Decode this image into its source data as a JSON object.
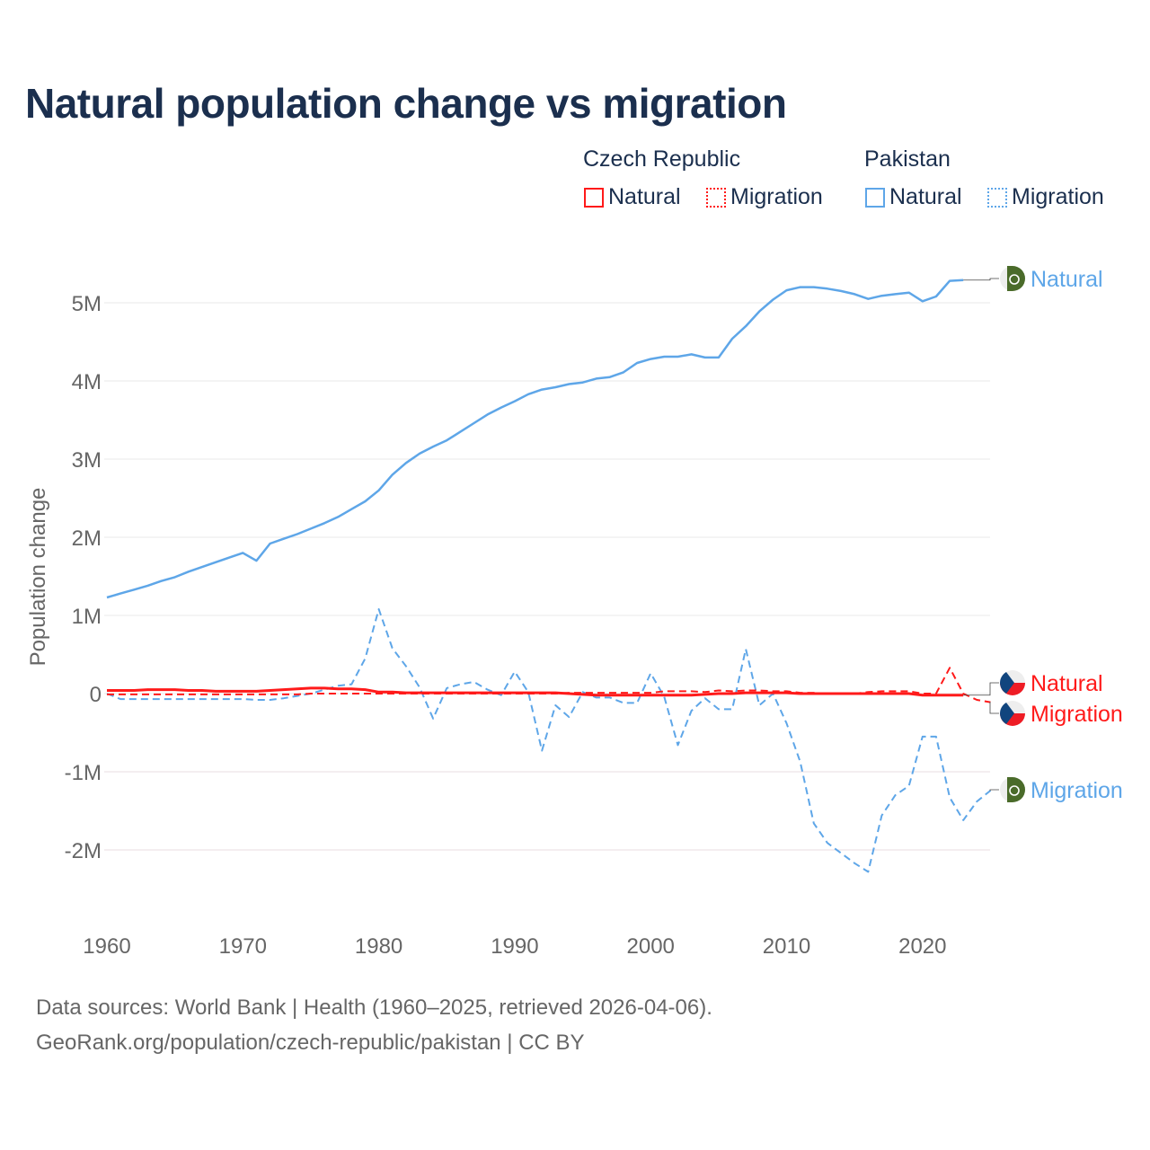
{
  "chart_data": {
    "type": "line",
    "title": "Natural population change vs migration",
    "xlabel": "",
    "ylabel": "Population change",
    "xlim": [
      1960,
      2025
    ],
    "ylim": [
      -2.6,
      5.6
    ],
    "x_ticks": [
      "1960",
      "1970",
      "1980",
      "1990",
      "2000",
      "2010",
      "2020"
    ],
    "y_ticks": [
      {
        "v": 5,
        "label": "5M"
      },
      {
        "v": 4,
        "label": "4M"
      },
      {
        "v": 3,
        "label": "3M"
      },
      {
        "v": 2,
        "label": "2M"
      },
      {
        "v": 1,
        "label": "1M"
      },
      {
        "v": 0,
        "label": "0"
      },
      {
        "v": -1,
        "label": "-1M"
      },
      {
        "v": -2,
        "label": "-2M"
      }
    ],
    "units": "millions",
    "legend": {
      "groups": [
        {
          "name": "Czech Republic",
          "items": [
            "Natural",
            "Migration"
          ]
        },
        {
          "name": "Pakistan",
          "items": [
            "Natural",
            "Migration"
          ]
        }
      ],
      "placement": "top-right"
    },
    "series": [
      {
        "name": "Pakistan Natural",
        "country": "Pakistan",
        "kind": "Natural",
        "color": "#5ea6e8",
        "dash": false,
        "start": 1960,
        "values": [
          1.23,
          1.28,
          1.33,
          1.38,
          1.44,
          1.49,
          1.56,
          1.62,
          1.68,
          1.74,
          1.8,
          1.7,
          1.92,
          1.98,
          2.04,
          2.11,
          2.18,
          2.26,
          2.36,
          2.46,
          2.6,
          2.8,
          2.95,
          3.07,
          3.16,
          3.24,
          3.35,
          3.46,
          3.57,
          3.66,
          3.74,
          3.83,
          3.89,
          3.92,
          3.96,
          3.98,
          4.03,
          4.05,
          4.11,
          4.23,
          4.28,
          4.31,
          4.31,
          4.34,
          4.3,
          4.3,
          4.54,
          4.7,
          4.89,
          5.04,
          5.16,
          5.2,
          5.2,
          5.18,
          5.15,
          5.11,
          5.05,
          5.09,
          5.11,
          5.13,
          5.02,
          5.08,
          5.28,
          5.29
        ]
      },
      {
        "name": "Pakistan Migration",
        "country": "Pakistan",
        "kind": "Migration",
        "color": "#5ea6e8",
        "dash": true,
        "start": 1960,
        "values": [
          0,
          -0.07,
          -0.07,
          -0.07,
          -0.07,
          -0.07,
          -0.07,
          -0.07,
          -0.07,
          -0.07,
          -0.07,
          -0.08,
          -0.08,
          -0.06,
          -0.03,
          0.0,
          0.05,
          0.1,
          0.12,
          0.45,
          1.08,
          0.58,
          0.35,
          0.08,
          -0.32,
          0.07,
          0.12,
          0.15,
          0.05,
          -0.02,
          0.28,
          0.02,
          -0.73,
          -0.15,
          -0.3,
          0.02,
          -0.05,
          -0.05,
          -0.12,
          -0.12,
          0.26,
          -0.04,
          -0.66,
          -0.22,
          -0.06,
          -0.2,
          -0.2,
          0.57,
          -0.15,
          0.0,
          -0.38,
          -0.87,
          -1.66,
          -1.91,
          -2.04,
          -2.17,
          -2.28,
          -1.56,
          -1.3,
          -1.18,
          -0.55,
          -0.55,
          -1.33,
          -1.62,
          -1.38,
          -1.24
        ]
      },
      {
        "name": "Czech Republic Natural",
        "country": "Czech Republic",
        "kind": "Natural",
        "color": "#ff1a1a",
        "dash": false,
        "start": 1960,
        "values": [
          0.04,
          0.04,
          0.04,
          0.05,
          0.05,
          0.05,
          0.04,
          0.04,
          0.03,
          0.03,
          0.03,
          0.03,
          0.04,
          0.05,
          0.06,
          0.07,
          0.07,
          0.06,
          0.06,
          0.05,
          0.02,
          0.02,
          0.01,
          0.01,
          0.01,
          0.01,
          0.01,
          0.01,
          0.01,
          0.01,
          0.01,
          0.01,
          0.01,
          0.01,
          0.0,
          -0.01,
          -0.02,
          -0.02,
          -0.02,
          -0.02,
          -0.02,
          -0.02,
          -0.02,
          -0.02,
          -0.01,
          0.0,
          0.0,
          0.01,
          0.01,
          0.01,
          0.01,
          0.0,
          0.0,
          0.0,
          0.0,
          0.0,
          0.0,
          0.0,
          0.0,
          0.0,
          -0.02,
          -0.02,
          -0.02,
          -0.02
        ]
      },
      {
        "name": "Czech Republic Migration",
        "country": "Czech Republic",
        "kind": "Migration",
        "color": "#ff1a1a",
        "dash": true,
        "start": 1960,
        "values": [
          -0.01,
          -0.01,
          -0.01,
          -0.01,
          -0.01,
          -0.01,
          -0.01,
          -0.01,
          -0.01,
          -0.01,
          -0.01,
          -0.01,
          -0.01,
          -0.01,
          -0.01,
          0.0,
          0.0,
          0.0,
          0.0,
          0.0,
          0.0,
          0.0,
          0.0,
          0.0,
          0.0,
          0.0,
          0.0,
          0.0,
          0.0,
          0.0,
          0.0,
          0.0,
          0.0,
          0.0,
          0.01,
          0.01,
          0.01,
          0.01,
          0.01,
          0.01,
          0.01,
          0.03,
          0.03,
          0.03,
          0.02,
          0.04,
          0.03,
          0.04,
          0.04,
          0.03,
          0.03,
          0.01,
          0.01,
          0.0,
          0.0,
          0.0,
          0.02,
          0.03,
          0.03,
          0.03,
          0.0,
          0.0,
          0.33,
          0.0,
          -0.08,
          -0.11
        ]
      }
    ],
    "end_labels": [
      {
        "text": "Natural",
        "country": "Pakistan"
      },
      {
        "text": "Natural",
        "country": "Czech Republic"
      },
      {
        "text": "Migration",
        "country": "Czech Republic"
      },
      {
        "text": "Migration",
        "country": "Pakistan"
      }
    ]
  },
  "legend": {
    "czech": "Czech Republic",
    "pakistan": "Pakistan",
    "natural": "Natural",
    "migration": "Migration"
  },
  "source_line1": "Data sources: World Bank | Health (1960–2025, retrieved 2026-04-06).",
  "source_line2": "GeoRank.org/population/czech-republic/pakistan | CC BY"
}
